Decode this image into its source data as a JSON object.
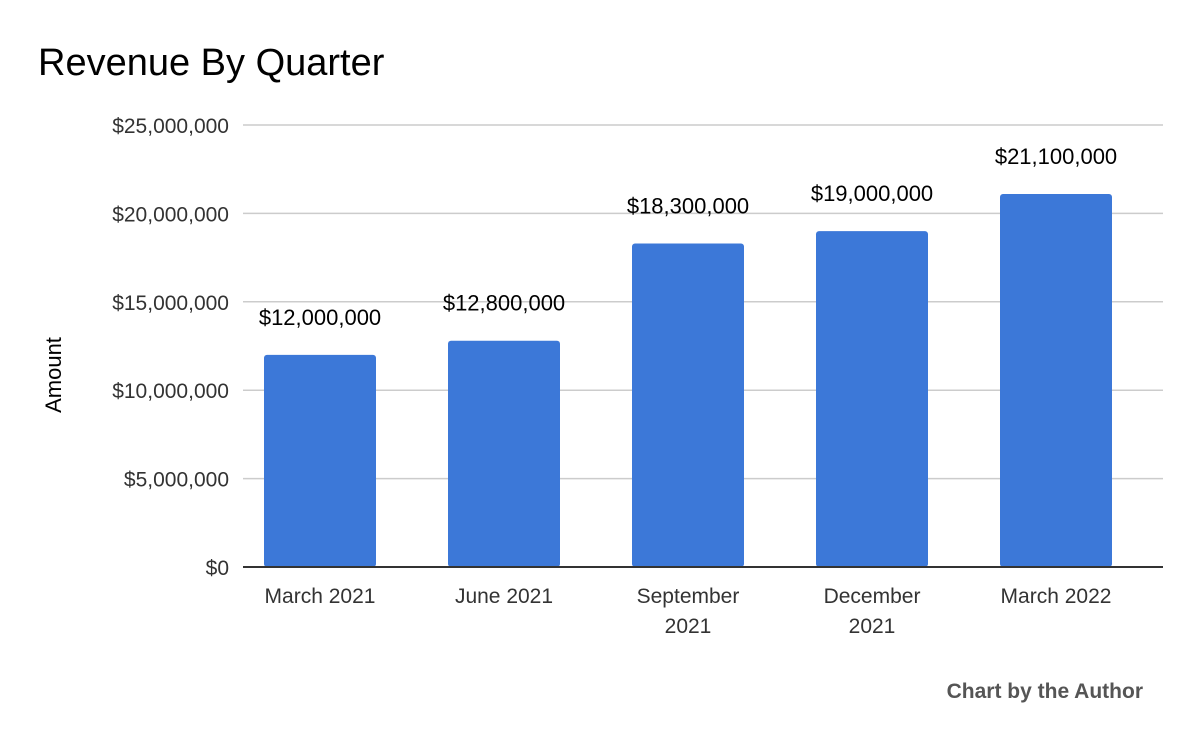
{
  "chart_data": {
    "type": "bar",
    "title": "Revenue By Quarter",
    "xlabel": "",
    "ylabel": "Amount",
    "ylim": [
      0,
      25000000
    ],
    "yticks": [
      0,
      5000000,
      10000000,
      15000000,
      20000000,
      25000000
    ],
    "ytick_labels": [
      "$0",
      "$5,000,000",
      "$10,000,000",
      "$15,000,000",
      "$20,000,000",
      "$25,000,000"
    ],
    "categories": [
      [
        "March 2021"
      ],
      [
        "June 2021"
      ],
      [
        "September",
        "2021"
      ],
      [
        "December",
        "2021"
      ],
      [
        "March 2022"
      ]
    ],
    "values": [
      12000000,
      12800000,
      18300000,
      19000000,
      21100000
    ],
    "data_labels": [
      "$12,000,000",
      "$12,800,000",
      "$18,300,000",
      "$19,000,000",
      "$21,100,000"
    ],
    "grid": true,
    "legend": "none",
    "bar_color": "#3c78d8"
  },
  "footer": {
    "credit": "Chart by the Author"
  }
}
